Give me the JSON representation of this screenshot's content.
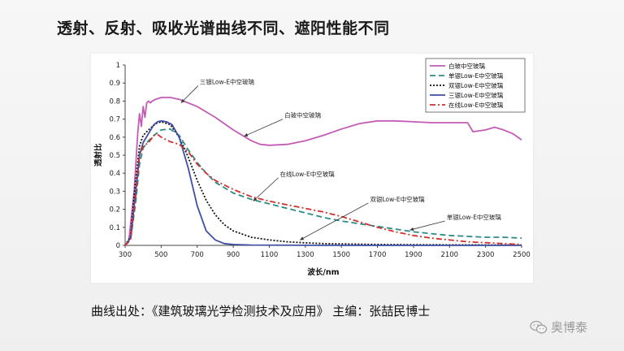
{
  "slide": {
    "title": "透射、反射、吸收光谱曲线不同、遮阳性能不同",
    "caption": "曲线出处：《建筑玻璃光学检测技术及应用》  主编：张喆民博士",
    "watermark": "奥博泰",
    "watermark_icon": "wechat-icon"
  },
  "chart_data": {
    "type": "line",
    "xlabel": "波长/nm",
    "ylabel": "透射比",
    "xlim": [
      300,
      2500
    ],
    "ylim": [
      0,
      1
    ],
    "xticks": [
      300,
      500,
      700,
      900,
      1100,
      1300,
      1500,
      1700,
      1900,
      2100,
      2300,
      2500
    ],
    "yticks": [
      0,
      0.1,
      0.2,
      0.3,
      0.4,
      0.5,
      0.6,
      0.7,
      0.8,
      0.9,
      1
    ],
    "grid": false,
    "legend_position": "top-right",
    "series": [
      {
        "name": "白玻中空玻璃",
        "color": "#c45bb5",
        "dash": "",
        "x": [
          300,
          320,
          350,
          370,
          380,
          390,
          400,
          410,
          420,
          430,
          440,
          450,
          470,
          500,
          550,
          600,
          700,
          800,
          900,
          1000,
          1050,
          1100,
          1200,
          1300,
          1400,
          1500,
          1600,
          1700,
          1800,
          1900,
          2000,
          2100,
          2200,
          2230,
          2300,
          2350,
          2400,
          2450,
          2500
        ],
        "y": [
          0,
          0.02,
          0.3,
          0.62,
          0.73,
          0.66,
          0.77,
          0.71,
          0.79,
          0.8,
          0.79,
          0.8,
          0.81,
          0.82,
          0.82,
          0.81,
          0.77,
          0.71,
          0.64,
          0.58,
          0.56,
          0.555,
          0.56,
          0.58,
          0.61,
          0.645,
          0.675,
          0.69,
          0.69,
          0.685,
          0.68,
          0.68,
          0.68,
          0.63,
          0.64,
          0.655,
          0.64,
          0.62,
          0.585
        ]
      },
      {
        "name": "单银Low-E中空玻璃",
        "color": "#2b8c85",
        "dash": "7,4",
        "x": [
          300,
          330,
          360,
          380,
          400,
          430,
          460,
          500,
          550,
          600,
          650,
          700,
          750,
          800,
          900,
          1000,
          1100,
          1200,
          1300,
          1400,
          1500,
          1600,
          1700,
          1800,
          1900,
          2000,
          2100,
          2200,
          2300,
          2400,
          2500
        ],
        "y": [
          0,
          0.03,
          0.25,
          0.45,
          0.54,
          0.58,
          0.61,
          0.64,
          0.645,
          0.61,
          0.53,
          0.46,
          0.4,
          0.35,
          0.29,
          0.255,
          0.23,
          0.205,
          0.18,
          0.155,
          0.135,
          0.12,
          0.105,
          0.09,
          0.075,
          0.065,
          0.055,
          0.05,
          0.045,
          0.045,
          0.04
        ]
      },
      {
        "name": "双银Low-E中空玻璃",
        "color": "#111111",
        "dash": "2,2",
        "x": [
          300,
          330,
          350,
          380,
          400,
          430,
          470,
          500,
          550,
          600,
          650,
          700,
          750,
          800,
          850,
          900,
          1000,
          1100,
          1200,
          1300,
          1400,
          1500,
          1700,
          2000,
          2500
        ],
        "y": [
          0,
          0.05,
          0.28,
          0.55,
          0.61,
          0.64,
          0.675,
          0.685,
          0.67,
          0.6,
          0.49,
          0.36,
          0.25,
          0.17,
          0.115,
          0.08,
          0.045,
          0.03,
          0.02,
          0.014,
          0.01,
          0.008,
          0.005,
          0.003,
          0.002
        ]
      },
      {
        "name": "三银Low-E中空玻璃",
        "color": "#3f4fa3",
        "dash": "",
        "x": [
          300,
          330,
          350,
          380,
          400,
          430,
          460,
          480,
          500,
          530,
          560,
          600,
          650,
          700,
          750,
          800,
          850,
          900,
          1000,
          1500,
          2500
        ],
        "y": [
          0,
          0.04,
          0.22,
          0.5,
          0.57,
          0.62,
          0.67,
          0.685,
          0.69,
          0.685,
          0.67,
          0.6,
          0.43,
          0.22,
          0.08,
          0.03,
          0.01,
          0.005,
          0.002,
          0,
          0
        ]
      },
      {
        "name": "在线Low-E中空玻璃",
        "color": "#d0312d",
        "dash": "7,3,2,3",
        "x": [
          300,
          330,
          360,
          380,
          400,
          430,
          460,
          480,
          500,
          550,
          600,
          650,
          700,
          750,
          800,
          900,
          1000,
          1100,
          1200,
          1300,
          1400,
          1500,
          1600,
          1700,
          1800,
          1900,
          2000,
          2100,
          2200,
          2300,
          2400,
          2500
        ],
        "y": [
          0,
          0.03,
          0.28,
          0.5,
          0.55,
          0.57,
          0.61,
          0.615,
          0.6,
          0.575,
          0.56,
          0.52,
          0.45,
          0.4,
          0.36,
          0.31,
          0.27,
          0.245,
          0.225,
          0.205,
          0.185,
          0.16,
          0.13,
          0.1,
          0.075,
          0.055,
          0.04,
          0.03,
          0.02,
          0.015,
          0.01,
          0.005
        ]
      }
    ],
    "annotations": [
      {
        "text": "三银Low-E中空玻璃",
        "x": 705,
        "y": 0.885,
        "arrow_x": 610,
        "arrow_y": 0.79
      },
      {
        "text": "白玻中空玻璃",
        "x": 1175,
        "y": 0.7,
        "arrow_x": 960,
        "arrow_y": 0.605
      },
      {
        "text": "在线Low-E中空玻璃",
        "x": 1150,
        "y": 0.375,
        "arrow_x": 1010,
        "arrow_y": 0.245
      },
      {
        "text": "双银Low-E中空玻璃",
        "x": 1650,
        "y": 0.235,
        "arrow_x": 1270,
        "arrow_y": 0.03
      },
      {
        "text": "单银Low-E中空玻璃",
        "x": 2075,
        "y": 0.135,
        "arrow_x": 1880,
        "arrow_y": 0.085
      }
    ]
  }
}
